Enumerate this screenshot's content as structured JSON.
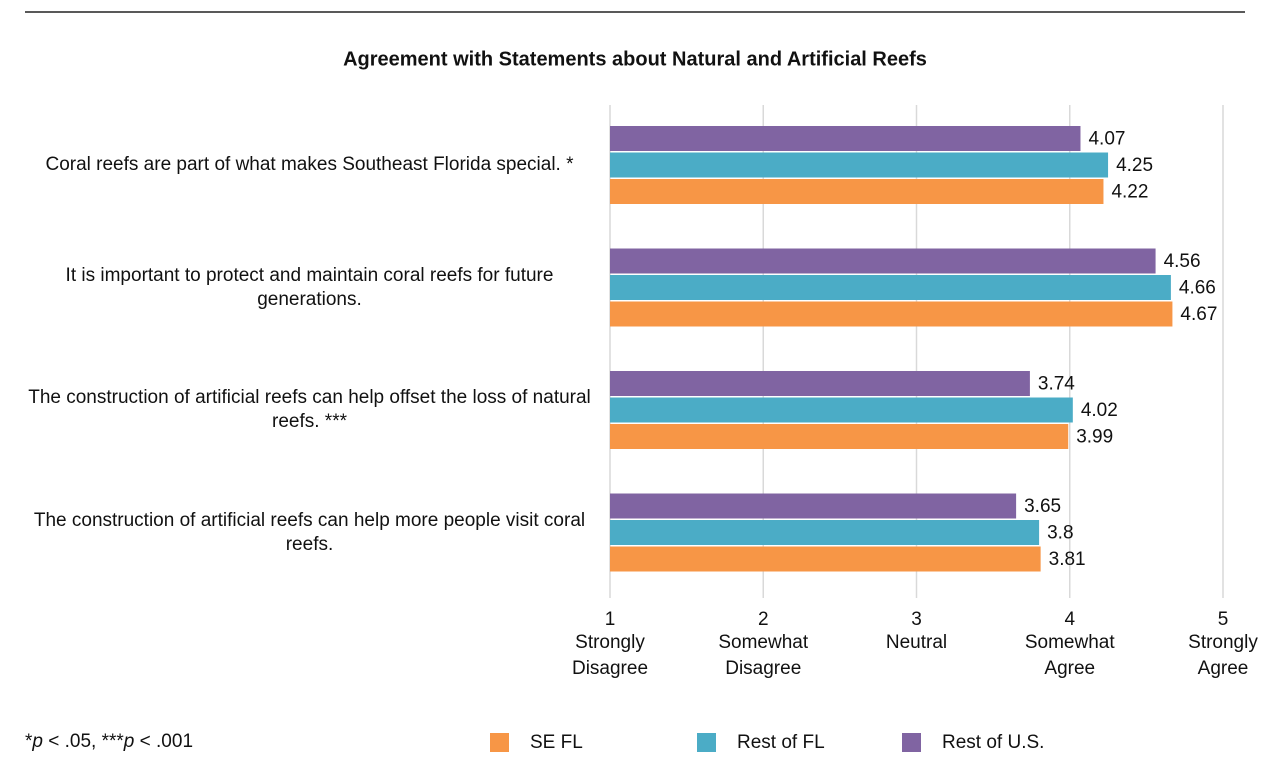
{
  "chart_data": {
    "type": "hbar",
    "title": "Agreement with Statements about Natural and Artificial Reefs",
    "categories": [
      "Coral reefs are part of what makes Southeast Florida special. *",
      "It is important to protect and maintain coral reefs for future generations.",
      "The construction of artificial reefs can help offset the loss of natural reefs. ***",
      "The construction of artificial reefs can help more people visit coral reefs."
    ],
    "series": [
      {
        "name": "SE FL",
        "color": "#f79646",
        "values": [
          4.22,
          4.67,
          3.99,
          3.81
        ]
      },
      {
        "name": "Rest of FL",
        "color": "#4bacc6",
        "values": [
          4.25,
          4.66,
          4.02,
          3.8
        ]
      },
      {
        "name": "Rest of U.S.",
        "color": "#8064a2",
        "values": [
          4.07,
          4.56,
          3.74,
          3.65
        ]
      }
    ],
    "xlim": [
      1,
      5
    ],
    "xticks": [
      1,
      2,
      3,
      4,
      5
    ],
    "xtick_descriptions": [
      [
        "Strongly",
        "Disagree"
      ],
      [
        "Somewhat",
        "Disagree"
      ],
      [
        "Neutral"
      ],
      [
        "Somewhat",
        "Agree"
      ],
      [
        "Strongly",
        "Agree"
      ]
    ],
    "grid": true,
    "note": [
      {
        "text": "*",
        "italic": false
      },
      {
        "text": "p",
        "italic": true
      },
      {
        "text": " < .05, ***",
        "italic": false
      },
      {
        "text": "p",
        "italic": true
      },
      {
        "text": " < .001",
        "italic": false
      }
    ]
  }
}
